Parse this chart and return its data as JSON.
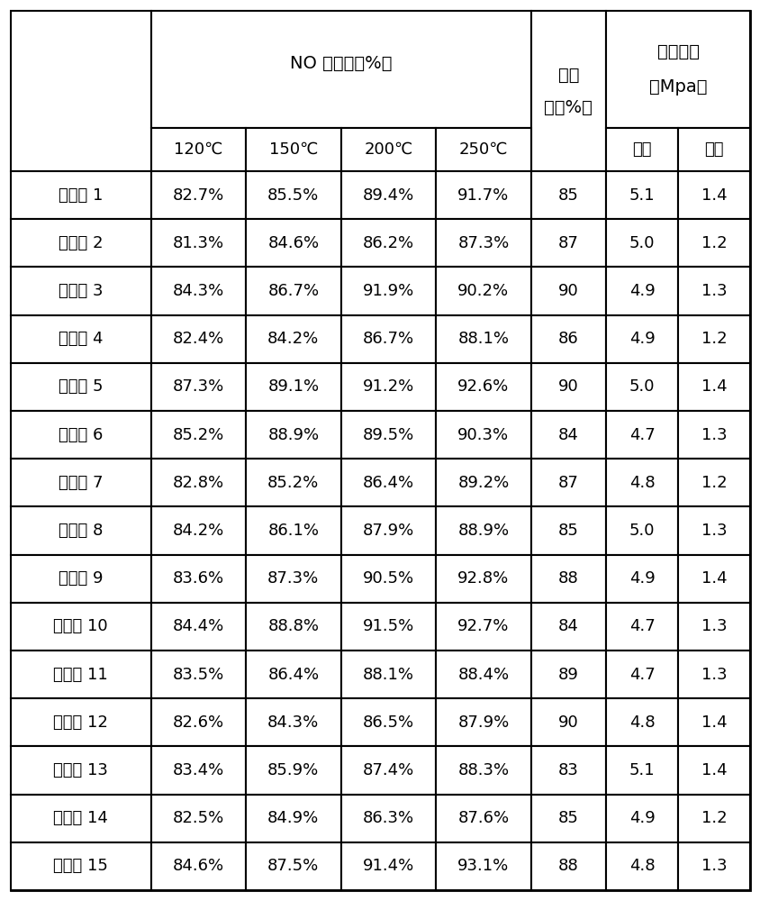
{
  "header_no": "NO 转化率（%）",
  "header_porosity": "孔隙",
  "header_porosity2": "率（%）",
  "header_strength": "抗压强度",
  "header_strength2": "（Mpa）",
  "header_temps": [
    "120℃",
    "150℃",
    "200℃",
    "250℃"
  ],
  "header_axial": "轴向",
  "header_radial": "径向",
  "example_label": "实施例",
  "rows": [
    {
      "n": "1",
      "t120": "82.7%",
      "t150": "85.5%",
      "t200": "89.4%",
      "t250": "91.7%",
      "por": "85",
      "ax": "5.1",
      "rad": "1.4"
    },
    {
      "n": "2",
      "t120": "81.3%",
      "t150": "84.6%",
      "t200": "86.2%",
      "t250": "87.3%",
      "por": "87",
      "ax": "5.0",
      "rad": "1.2"
    },
    {
      "n": "3",
      "t120": "84.3%",
      "t150": "86.7%",
      "t200": "91.9%",
      "t250": "90.2%",
      "por": "90",
      "ax": "4.9",
      "rad": "1.3"
    },
    {
      "n": "4",
      "t120": "82.4%",
      "t150": "84.2%",
      "t200": "86.7%",
      "t250": "88.1%",
      "por": "86",
      "ax": "4.9",
      "rad": "1.2"
    },
    {
      "n": "5",
      "t120": "87.3%",
      "t150": "89.1%",
      "t200": "91.2%",
      "t250": "92.6%",
      "por": "90",
      "ax": "5.0",
      "rad": "1.4"
    },
    {
      "n": "6",
      "t120": "85.2%",
      "t150": "88.9%",
      "t200": "89.5%",
      "t250": "90.3%",
      "por": "84",
      "ax": "4.7",
      "rad": "1.3"
    },
    {
      "n": "7",
      "t120": "82.8%",
      "t150": "85.2%",
      "t200": "86.4%",
      "t250": "89.2%",
      "por": "87",
      "ax": "4.8",
      "rad": "1.2"
    },
    {
      "n": "8",
      "t120": "84.2%",
      "t150": "86.1%",
      "t200": "87.9%",
      "t250": "88.9%",
      "por": "85",
      "ax": "5.0",
      "rad": "1.3"
    },
    {
      "n": "9",
      "t120": "83.6%",
      "t150": "87.3%",
      "t200": "90.5%",
      "t250": "92.8%",
      "por": "88",
      "ax": "4.9",
      "rad": "1.4"
    },
    {
      "n": "10",
      "t120": "84.4%",
      "t150": "88.8%",
      "t200": "91.5%",
      "t250": "92.7%",
      "por": "84",
      "ax": "4.7",
      "rad": "1.3"
    },
    {
      "n": "11",
      "t120": "83.5%",
      "t150": "86.4%",
      "t200": "88.1%",
      "t250": "88.4%",
      "por": "89",
      "ax": "4.7",
      "rad": "1.3"
    },
    {
      "n": "12",
      "t120": "82.6%",
      "t150": "84.3%",
      "t200": "86.5%",
      "t250": "87.9%",
      "por": "90",
      "ax": "4.8",
      "rad": "1.4"
    },
    {
      "n": "13",
      "t120": "83.4%",
      "t150": "85.9%",
      "t200": "87.4%",
      "t250": "88.3%",
      "por": "83",
      "ax": "5.1",
      "rad": "1.4"
    },
    {
      "n": "14",
      "t120": "82.5%",
      "t150": "84.9%",
      "t200": "86.3%",
      "t250": "87.6%",
      "por": "85",
      "ax": "4.9",
      "rad": "1.2"
    },
    {
      "n": "15",
      "t120": "84.6%",
      "t150": "87.5%",
      "t200": "91.4%",
      "t250": "93.1%",
      "por": "88",
      "ax": "4.8",
      "rad": "1.3"
    }
  ],
  "bg_color": "#ffffff",
  "line_color": "#000000",
  "text_color": "#000000"
}
